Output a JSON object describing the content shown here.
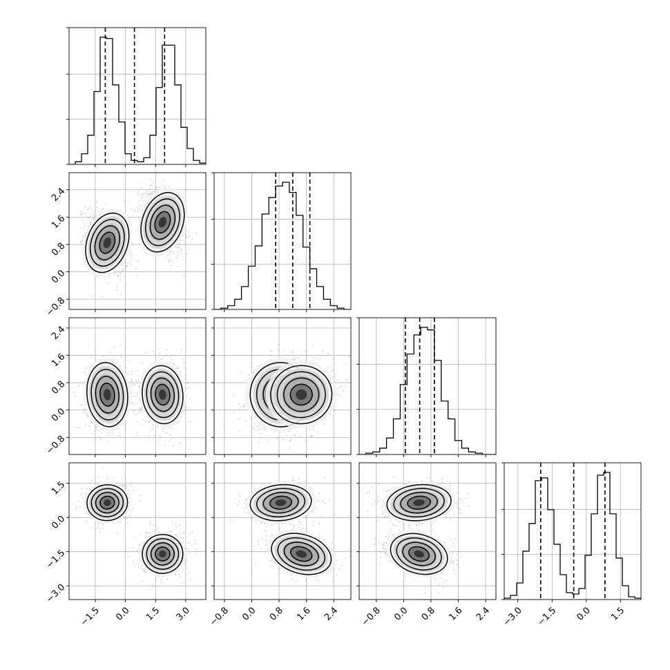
{
  "chart_data": {
    "type": "corner",
    "dimensions": [
      {
        "range": [
          -2.8,
          4.0
        ],
        "ticks": [
          -1.5,
          0.0,
          1.5,
          3.0
        ],
        "tick_labels": [
          "−1.5",
          "0.0",
          "1.5",
          "3.0"
        ],
        "quantiles": [
          -1.0,
          0.45,
          1.95
        ]
      },
      {
        "range": [
          -1.1,
          2.9
        ],
        "ticks": [
          -0.8,
          0.0,
          0.8,
          1.6,
          2.4
        ],
        "tick_labels": [
          "−0.8",
          "0.0",
          "0.8",
          "1.6",
          "2.4"
        ],
        "quantiles": [
          0.7,
          1.2,
          1.7
        ]
      },
      {
        "range": [
          -1.3,
          2.7
        ],
        "ticks": [
          -0.8,
          0.0,
          0.8,
          1.6,
          2.4
        ],
        "tick_labels": [
          "−0.8",
          "0.0",
          "0.8",
          "1.6",
          "2.4"
        ],
        "quantiles": [
          0.05,
          0.47,
          0.9
        ]
      },
      {
        "range": [
          -3.6,
          2.4
        ],
        "ticks": [
          -3.0,
          -1.5,
          0.0,
          1.5
        ],
        "tick_labels": [
          "−3.0",
          "−1.5",
          "0.0",
          "1.5"
        ],
        "quantiles": [
          -2.0,
          -0.55,
          0.82
        ]
      }
    ],
    "histograms": [
      {
        "bins": [
          -2.8,
          4.0
        ],
        "counts": [
          0,
          0.02,
          0.08,
          0.22,
          0.55,
          0.96,
          0.95,
          0.6,
          0.32,
          0.08,
          0.03,
          0.02,
          0.05,
          0.22,
          0.58,
          0.9,
          0.9,
          0.6,
          0.28,
          0.12,
          0.03,
          0.01
        ]
      },
      {
        "bins": [
          -1.1,
          2.9
        ],
        "counts": [
          0,
          0.01,
          0.03,
          0.08,
          0.18,
          0.34,
          0.5,
          0.75,
          0.88,
          0.97,
          1.0,
          0.92,
          0.74,
          0.49,
          0.32,
          0.18,
          0.08,
          0.03,
          0.01,
          0.0
        ]
      },
      {
        "bins": [
          -1.3,
          2.7
        ],
        "counts": [
          0,
          0.01,
          0.02,
          0.05,
          0.13,
          0.28,
          0.55,
          0.79,
          0.94,
          1.0,
          0.98,
          0.74,
          0.42,
          0.28,
          0.11,
          0.05,
          0.02,
          0.01,
          0.0,
          0.0
        ]
      },
      {
        "bins": [
          -3.6,
          2.4
        ],
        "counts": [
          0.01,
          0.03,
          0.12,
          0.35,
          0.55,
          0.86,
          0.88,
          0.65,
          0.4,
          0.18,
          0.05,
          0.04,
          0.08,
          0.32,
          0.62,
          0.9,
          0.92,
          0.62,
          0.3,
          0.1,
          0.02,
          0.01
        ]
      }
    ],
    "clusters": [
      {
        "means": [
          -0.9,
          0.85,
          0.45,
          0.65
        ],
        "sds": [
          0.45,
          0.4,
          0.42,
          0.35
        ]
      },
      {
        "means": [
          1.85,
          1.45,
          0.45,
          -1.6
        ],
        "sds": [
          0.45,
          0.4,
          0.38,
          0.38
        ]
      }
    ],
    "contour_levels": [
      1.0,
      1.6,
      2.2,
      2.8
    ],
    "grid": true
  }
}
